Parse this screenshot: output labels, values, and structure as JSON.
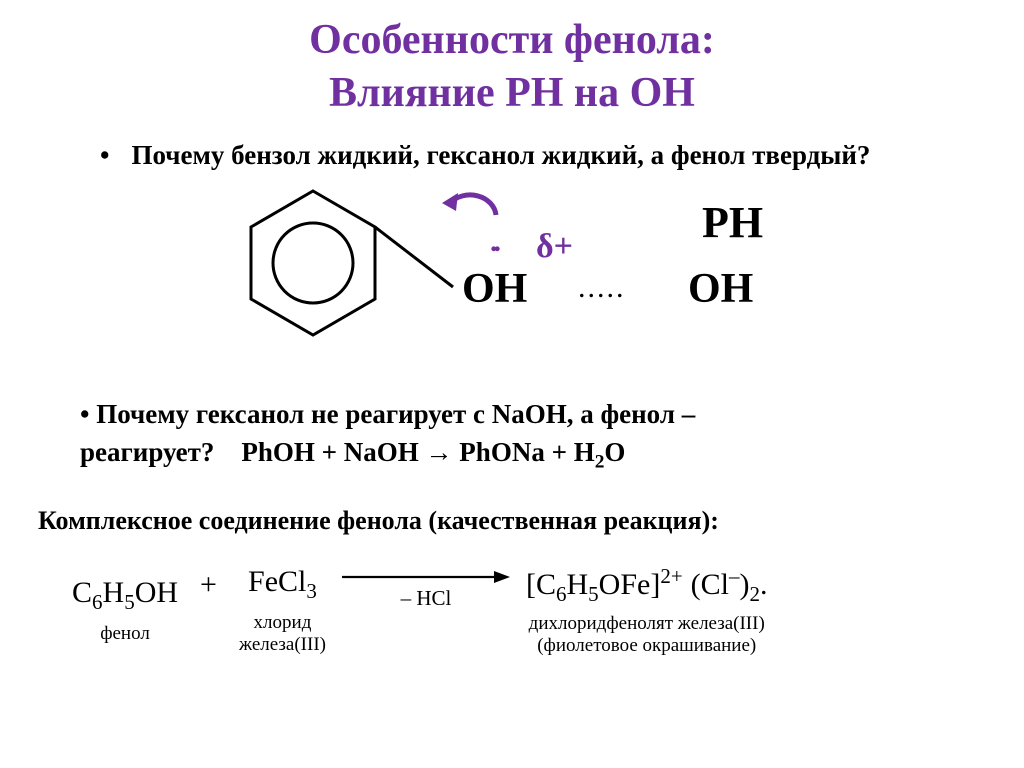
{
  "title_line1": "Особенности фенола:",
  "title_line2": "Влияние РН на ОН",
  "question1": "Почему бензол жидкий, гексанол жидкий, а фенол твердый?",
  "diagram": {
    "delta": "δ+",
    "lone_pair": "..",
    "oh1": "OH",
    "ph2": "PH",
    "oh2": "OH",
    "hbond": "....."
  },
  "question2_line1": "• Почему гексанол не реагирует с NаОН, а фенол –",
  "question2_prefix": "реагирует?",
  "equation_html": "PhOH + NaOH → PhONa + H<sub>2</sub>O",
  "complex_label": "Комплексное соединение фенола (качественная реакция):",
  "reaction": {
    "reactant1_formula": "C<sub>6</sub>H<sub>5</sub>OH",
    "reactant1_label": "фенол",
    "plus": "+",
    "reactant2_formula": "FeCl<sub>3</sub>",
    "reactant2_label_l1": "хлорид",
    "reactant2_label_l2": "железа(III)",
    "arrow_sub": "– HCl",
    "product_formula_main": "[C<sub>6</sub>H<sub>5</sub>OFe]<sup>2+</sup>",
    "product_formula_tail": "(Cl<sup>–</sup>)<sub>2</sub>.",
    "product_label_l1": "дихлоридфенолят железа(III)",
    "product_label_l2": "(фиолетовое окрашивание)"
  },
  "colors": {
    "title": "#7030a0",
    "accent": "#7030a0",
    "text": "#000000",
    "background": "#ffffff"
  }
}
